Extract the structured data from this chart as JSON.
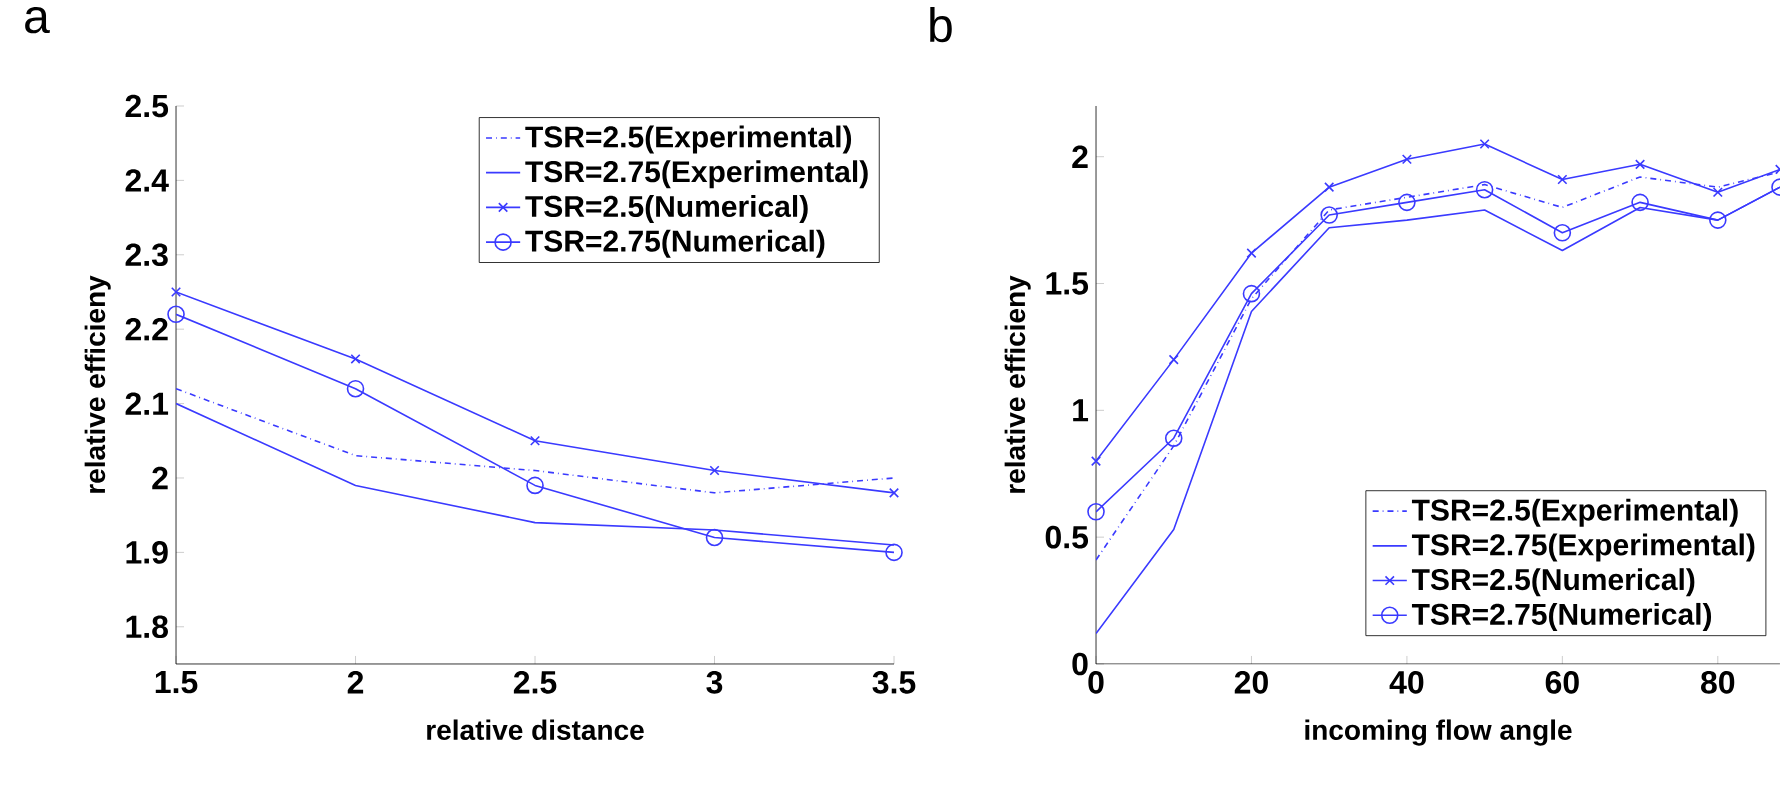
{
  "chart_data": [
    {
      "type": "line",
      "title": "a",
      "xlabel": "relative distance",
      "ylabel": "relative efficieny",
      "x": [
        1.5,
        2,
        2.5,
        3,
        3.5
      ],
      "xlim": [
        1.5,
        3.5
      ],
      "xticks": [
        1.5,
        2,
        2.5,
        3,
        3.5
      ],
      "ylim": [
        1.75,
        2.5
      ],
      "yticks": [
        1.8,
        1.9,
        2,
        2.1,
        2.2,
        2.3,
        2.4,
        2.5
      ],
      "grid": false,
      "legend": "top right",
      "series": [
        {
          "name": "TSR=2.5(Experimental)",
          "color": "#3a3aff",
          "line_style": "dashdot",
          "marker": "none",
          "values": [
            2.12,
            2.03,
            2.01,
            1.98,
            2.0
          ]
        },
        {
          "name": "TSR=2.75(Experimental)",
          "color": "#3a3aff",
          "line_style": "solid",
          "marker": "none",
          "values": [
            2.1,
            1.99,
            1.94,
            1.93,
            1.91
          ]
        },
        {
          "name": "TSR=2.5(Numerical)",
          "color": "#3a3aff",
          "line_style": "solid",
          "marker": "cross",
          "values": [
            2.25,
            2.16,
            2.05,
            2.01,
            1.98
          ]
        },
        {
          "name": "TSR=2.75(Numerical)",
          "color": "#3a3aff",
          "line_style": "solid",
          "marker": "circle",
          "values": [
            2.22,
            2.12,
            1.99,
            1.92,
            1.9
          ]
        }
      ]
    },
    {
      "type": "line",
      "title": "b",
      "xlabel": "incoming flow angle",
      "ylabel": "relative efficieny",
      "x": [
        0,
        10,
        20,
        30,
        40,
        50,
        60,
        70,
        80,
        88
      ],
      "xlim": [
        0,
        88
      ],
      "xticks": [
        0,
        20,
        40,
        60,
        80
      ],
      "ylim": [
        0,
        2.2
      ],
      "yticks": [
        0,
        0.5,
        1,
        1.5,
        2
      ],
      "grid": false,
      "legend": "bottom right",
      "series": [
        {
          "name": "TSR=2.5(Experimental)",
          "color": "#3a3aff",
          "line_style": "dashdot",
          "marker": "none",
          "values": [
            0.41,
            0.86,
            1.44,
            1.79,
            1.84,
            1.89,
            1.8,
            1.92,
            1.88,
            1.94
          ]
        },
        {
          "name": "TSR=2.75(Experimental)",
          "color": "#3a3aff",
          "line_style": "solid",
          "marker": "none",
          "values": [
            0.12,
            0.53,
            1.39,
            1.72,
            1.75,
            1.79,
            1.63,
            1.8,
            1.75,
            1.88
          ]
        },
        {
          "name": "TSR=2.5(Numerical)",
          "color": "#3a3aff",
          "line_style": "solid",
          "marker": "cross",
          "values": [
            0.8,
            1.2,
            1.62,
            1.88,
            1.99,
            2.05,
            1.91,
            1.97,
            1.86,
            1.95
          ]
        },
        {
          "name": "TSR=2.75(Numerical)",
          "color": "#3a3aff",
          "line_style": "solid",
          "marker": "circle",
          "values": [
            0.6,
            0.89,
            1.46,
            1.77,
            1.82,
            1.87,
            1.7,
            1.82,
            1.75,
            1.88
          ]
        }
      ]
    }
  ]
}
